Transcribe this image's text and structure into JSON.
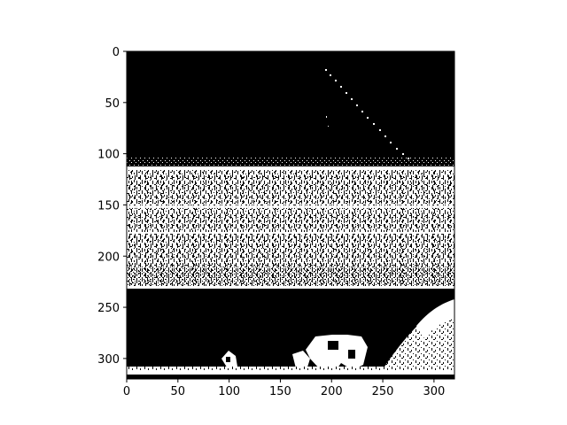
{
  "chart_data": {
    "type": "heatmap",
    "title": "",
    "xlabel": "",
    "ylabel": "",
    "colormap": "binary",
    "colors": {
      "on": "#ffffff",
      "off": "#000000"
    },
    "xlim": [
      0,
      320
    ],
    "ylim": [
      320,
      0
    ],
    "x_ticks": [
      0,
      50,
      100,
      150,
      200,
      250,
      300
    ],
    "y_ticks": [
      0,
      50,
      100,
      150,
      200,
      250,
      300
    ],
    "x_tick_labels": [
      "0",
      "50",
      "100",
      "150",
      "200",
      "250",
      "300"
    ],
    "y_tick_labels": [
      "0",
      "50",
      "100",
      "150",
      "200",
      "250",
      "300"
    ]
  }
}
